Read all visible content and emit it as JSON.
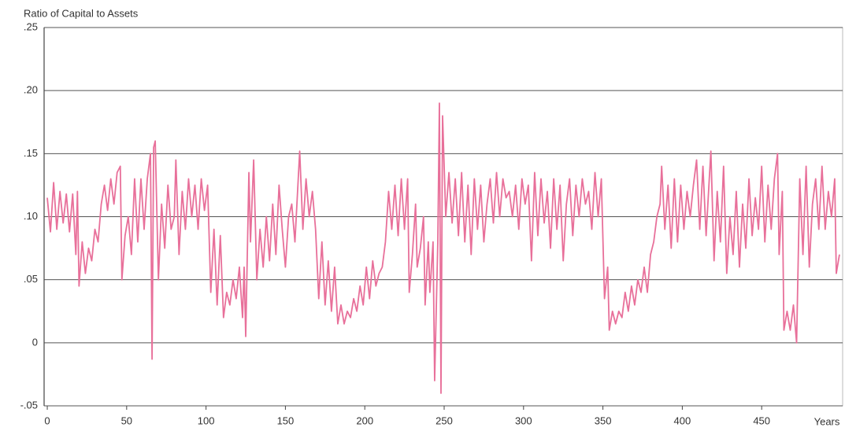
{
  "chart_data": {
    "type": "line",
    "ylabel": "Ratio of Capital to Assets",
    "xlabel": "Years",
    "xlim": [
      -2,
      501
    ],
    "ylim": [
      -0.05,
      0.25
    ],
    "xticks": [
      0,
      50,
      100,
      150,
      200,
      250,
      300,
      350,
      400,
      450
    ],
    "yticks": [
      {
        "value": -0.05,
        "label": "-.05"
      },
      0,
      {
        "value": 0.05,
        "label": ".05"
      },
      {
        "value": 0.1,
        "label": ".10"
      },
      {
        "value": 0.15,
        "label": ".15"
      },
      {
        "value": 0.2,
        "label": ".20"
      },
      {
        "value": 0.25,
        "label": ".25"
      }
    ],
    "grid": true,
    "series": [
      {
        "color": "#e8709a",
        "x": [
          0,
          2,
          4,
          6,
          8,
          10,
          12,
          14,
          16,
          18,
          19,
          20,
          22,
          24,
          26,
          28,
          30,
          32,
          34,
          36,
          38,
          40,
          42,
          44,
          46,
          47,
          49,
          51,
          53,
          55,
          57,
          59,
          61,
          63,
          65,
          66,
          67,
          68,
          70,
          72,
          74,
          76,
          78,
          80,
          81,
          83,
          85,
          87,
          89,
          91,
          93,
          95,
          97,
          99,
          101,
          103,
          105,
          107,
          109,
          111,
          113,
          115,
          117,
          119,
          121,
          123,
          124,
          125,
          127,
          128,
          130,
          132,
          134,
          136,
          138,
          140,
          142,
          144,
          146,
          148,
          150,
          152,
          154,
          156,
          159,
          161,
          163,
          165,
          167,
          169,
          171,
          173,
          175,
          177,
          179,
          181,
          183,
          185,
          187,
          189,
          191,
          193,
          195,
          197,
          199,
          201,
          203,
          205,
          207,
          209,
          211,
          213,
          215,
          217,
          219,
          221,
          223,
          225,
          227,
          228,
          230,
          232,
          233,
          235,
          237,
          238,
          240,
          241,
          243,
          244,
          246,
          247,
          248,
          249,
          251,
          253,
          255,
          257,
          259,
          261,
          263,
          265,
          267,
          269,
          271,
          273,
          275,
          277,
          279,
          281,
          283,
          285,
          287,
          289,
          291,
          293,
          295,
          297,
          299,
          301,
          303,
          305,
          307,
          309,
          311,
          313,
          315,
          317,
          319,
          321,
          323,
          325,
          327,
          329,
          331,
          333,
          335,
          337,
          339,
          341,
          343,
          345,
          347,
          349,
          351,
          353,
          354,
          356,
          358,
          360,
          362,
          364,
          366,
          368,
          370,
          372,
          374,
          376,
          378,
          380,
          382,
          384,
          386,
          387,
          389,
          391,
          393,
          395,
          397,
          399,
          401,
          403,
          405,
          407,
          409,
          411,
          413,
          415,
          417,
          418,
          420,
          422,
          424,
          426,
          428,
          430,
          432,
          434,
          436,
          438,
          440,
          442,
          444,
          446,
          448,
          450,
          452,
          454,
          456,
          458,
          460,
          461,
          463,
          464,
          466,
          468,
          470,
          472,
          474,
          476,
          478,
          480,
          482,
          484,
          486,
          488,
          490,
          492,
          494,
          496,
          497,
          499
        ],
        "values": [
          0.115,
          0.088,
          0.127,
          0.09,
          0.12,
          0.095,
          0.118,
          0.088,
          0.118,
          0.07,
          0.12,
          0.045,
          0.08,
          0.055,
          0.075,
          0.065,
          0.09,
          0.08,
          0.11,
          0.125,
          0.105,
          0.13,
          0.11,
          0.135,
          0.14,
          0.05,
          0.085,
          0.1,
          0.07,
          0.13,
          0.08,
          0.13,
          0.09,
          0.13,
          0.15,
          -0.013,
          0.155,
          0.16,
          0.05,
          0.11,
          0.075,
          0.125,
          0.09,
          0.1,
          0.145,
          0.07,
          0.12,
          0.09,
          0.13,
          0.1,
          0.125,
          0.09,
          0.13,
          0.105,
          0.125,
          0.04,
          0.09,
          0.03,
          0.085,
          0.02,
          0.04,
          0.03,
          0.05,
          0.035,
          0.06,
          0.02,
          0.06,
          0.005,
          0.135,
          0.08,
          0.145,
          0.05,
          0.09,
          0.06,
          0.1,
          0.065,
          0.11,
          0.07,
          0.125,
          0.09,
          0.06,
          0.1,
          0.11,
          0.08,
          0.152,
          0.09,
          0.13,
          0.1,
          0.12,
          0.09,
          0.035,
          0.08,
          0.03,
          0.065,
          0.025,
          0.06,
          0.015,
          0.03,
          0.015,
          0.025,
          0.02,
          0.035,
          0.025,
          0.045,
          0.03,
          0.06,
          0.035,
          0.065,
          0.045,
          0.055,
          0.06,
          0.08,
          0.12,
          0.09,
          0.125,
          0.085,
          0.13,
          0.09,
          0.13,
          0.04,
          0.07,
          0.11,
          0.06,
          0.075,
          0.1,
          0.03,
          0.08,
          0.04,
          0.08,
          -0.03,
          0.08,
          0.19,
          -0.04,
          0.18,
          0.1,
          0.135,
          0.095,
          0.13,
          0.085,
          0.135,
          0.08,
          0.125,
          0.07,
          0.13,
          0.09,
          0.125,
          0.08,
          0.11,
          0.13,
          0.095,
          0.135,
          0.1,
          0.13,
          0.115,
          0.12,
          0.1,
          0.125,
          0.09,
          0.13,
          0.11,
          0.125,
          0.065,
          0.135,
          0.085,
          0.13,
          0.095,
          0.12,
          0.075,
          0.13,
          0.09,
          0.125,
          0.065,
          0.11,
          0.13,
          0.085,
          0.125,
          0.1,
          0.13,
          0.11,
          0.12,
          0.09,
          0.135,
          0.1,
          0.13,
          0.035,
          0.06,
          0.01,
          0.025,
          0.015,
          0.025,
          0.02,
          0.04,
          0.025,
          0.045,
          0.03,
          0.05,
          0.04,
          0.06,
          0.04,
          0.07,
          0.08,
          0.1,
          0.11,
          0.14,
          0.09,
          0.125,
          0.075,
          0.13,
          0.08,
          0.125,
          0.09,
          0.12,
          0.1,
          0.125,
          0.145,
          0.09,
          0.14,
          0.085,
          0.13,
          0.152,
          0.065,
          0.12,
          0.08,
          0.14,
          0.055,
          0.1,
          0.07,
          0.12,
          0.06,
          0.11,
          0.075,
          0.13,
          0.085,
          0.115,
          0.09,
          0.14,
          0.08,
          0.125,
          0.09,
          0.13,
          0.15,
          0.07,
          0.12,
          0.01,
          0.025,
          0.01,
          0.03,
          0,
          0.13,
          0.07,
          0.14,
          0.06,
          0.11,
          0.13,
          0.09,
          0.14,
          0.09,
          0.12,
          0.1,
          0.13,
          0.055,
          0.07
        ]
      }
    ]
  }
}
